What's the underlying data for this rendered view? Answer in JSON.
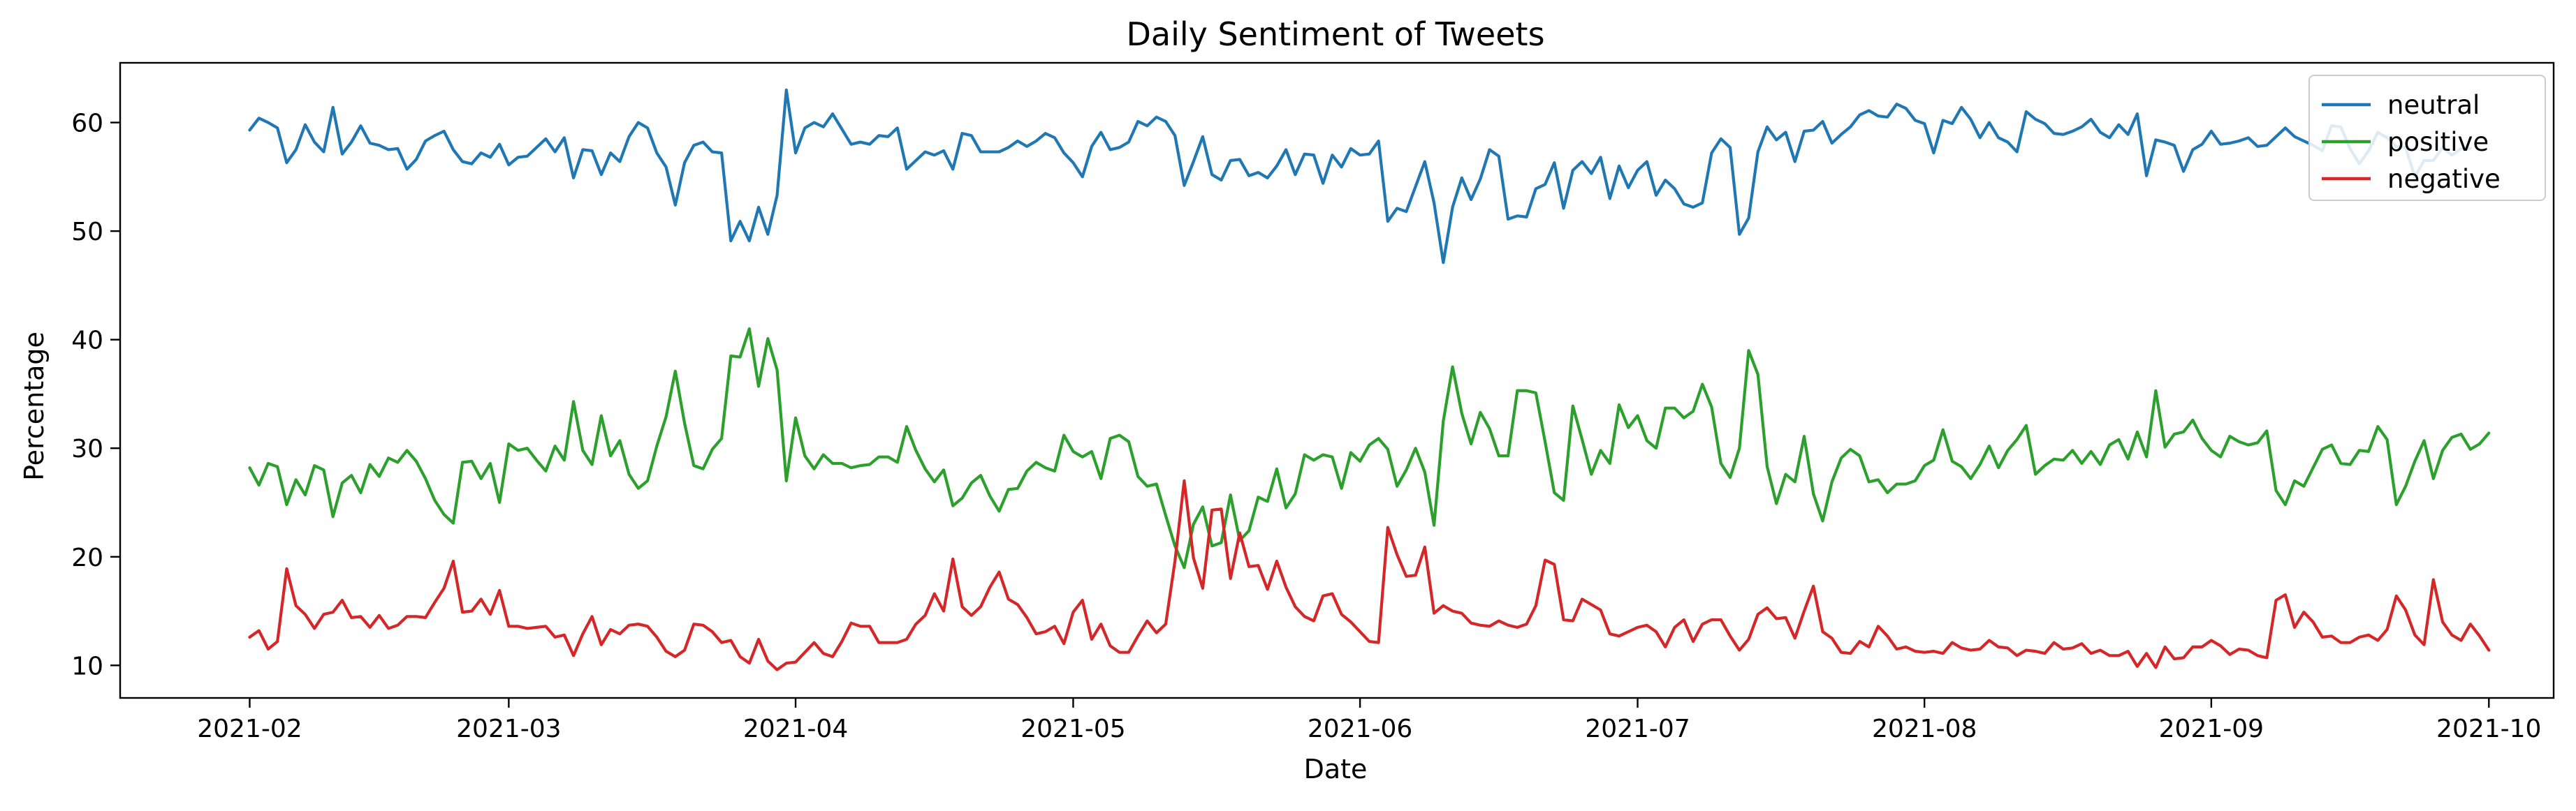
{
  "chart_data": {
    "type": "line",
    "title": "Daily Sentiment of Tweets",
    "xlabel": "Date",
    "ylabel": "Percentage",
    "xlim": [
      "2021-01-18",
      "2021-10-08"
    ],
    "ylim": [
      7,
      65.5
    ],
    "x_ticks": [
      "2021-02-01",
      "2021-03-01",
      "2021-04-01",
      "2021-05-01",
      "2021-06-01",
      "2021-07-01",
      "2021-08-01",
      "2021-09-01",
      "2021-10-01"
    ],
    "x_tick_labels": [
      "2021-02",
      "2021-03",
      "2021-04",
      "2021-05",
      "2021-06",
      "2021-07",
      "2021-08",
      "2021-09",
      "2021-10"
    ],
    "y_ticks": [
      10,
      20,
      30,
      40,
      50,
      60
    ],
    "y_tick_labels": [
      "10",
      "20",
      "30",
      "40",
      "50",
      "60"
    ],
    "grid": false,
    "legend_position": "top-right",
    "x_start": "2021-02-01",
    "series": [
      {
        "name": "neutral",
        "color": "#1f77b4",
        "values": [
          59.3,
          60.4,
          60,
          59.5,
          56.3,
          57.5,
          59.8,
          58.2,
          57.3,
          61.4,
          57.1,
          58.2,
          59.7,
          58.1,
          57.9,
          57.5,
          57.6,
          55.7,
          56.6,
          58.3,
          58.8,
          59.2,
          57.5,
          56.4,
          56.2,
          57.2,
          56.8,
          58,
          56.1,
          56.8,
          56.9,
          57.7,
          58.5,
          57.3,
          58.6,
          54.9,
          57.5,
          57.4,
          55.2,
          57.2,
          56.4,
          58.7,
          60,
          59.5,
          57.2,
          55.9,
          52.4,
          56.3,
          57.9,
          58.2,
          57.3,
          57.2,
          49.1,
          50.9,
          49.1,
          52.2,
          49.7,
          53.3,
          63,
          57.2,
          59.5,
          60,
          59.6,
          60.8,
          59.4,
          58,
          58.2,
          58,
          58.8,
          58.7,
          59.5,
          55.7,
          56.5,
          57.3,
          57,
          57.4,
          55.7,
          59,
          58.8,
          57.3,
          57.3,
          57.3,
          57.7,
          58.3,
          57.8,
          58.3,
          59,
          58.6,
          57.2,
          56.3,
          55,
          57.8,
          59.1,
          57.5,
          57.7,
          58.2,
          60.1,
          59.7,
          60.5,
          60.1,
          58.8,
          54.2,
          56.4,
          58.7,
          55.2,
          54.7,
          56.5,
          56.6,
          55.1,
          55.4,
          54.9,
          56,
          57.5,
          55.2,
          57.1,
          57,
          54.4,
          57,
          55.9,
          57.6,
          57,
          57.1,
          58.3,
          50.9,
          52.1,
          51.8,
          54.1,
          56.4,
          52.6,
          47.1,
          52.2,
          54.9,
          52.9,
          54.8,
          57.5,
          56.9,
          51.1,
          51.4,
          51.3,
          53.9,
          54.3,
          56.3,
          52.1,
          55.6,
          56.4,
          55.3,
          56.8,
          53,
          56,
          54,
          55.6,
          56.4,
          53.3,
          54.7,
          53.9,
          52.5,
          52.2,
          52.6,
          57.2,
          58.5,
          57.7,
          49.7,
          51.2,
          57.3,
          59.6,
          58.4,
          59.1,
          56.4,
          59.2,
          59.3,
          60.1,
          58.1,
          58.9,
          59.6,
          60.7,
          61.1,
          60.6,
          60.5,
          61.7,
          61.3,
          60.2,
          59.9,
          57.2,
          60.2,
          59.9,
          61.4,
          60.3,
          58.6,
          60,
          58.6,
          58.2,
          57.3,
          61,
          60.3,
          59.9,
          59,
          58.9,
          59.2,
          59.6,
          60.3,
          59.1,
          58.6,
          59.8,
          58.9,
          60.8,
          55.1,
          58.4,
          58.2,
          57.9,
          55.5,
          57.5,
          58,
          59.2,
          58,
          58.1,
          58.3,
          58.6,
          57.8,
          57.9,
          58.7,
          59.5,
          58.7,
          58.3,
          57.9,
          57.4,
          59.7,
          59.6,
          57.6,
          56.2,
          57.4,
          59.1,
          58.6,
          57.8,
          57.7,
          55,
          56.5,
          56.5,
          57.7,
          57,
          57.6,
          57.6
        ]
      },
      {
        "name": "positive",
        "color": "#2ca02c",
        "values": [
          28.2,
          26.6,
          28.6,
          28.3,
          24.8,
          27.1,
          25.7,
          28.4,
          28,
          23.7,
          26.8,
          27.5,
          25.9,
          28.5,
          27.4,
          29.1,
          28.7,
          29.8,
          28.8,
          27.2,
          25.2,
          23.9,
          23.1,
          28.7,
          28.8,
          27.2,
          28.6,
          25,
          30.4,
          29.8,
          30,
          28.9,
          27.9,
          30.2,
          28.9,
          34.3,
          29.8,
          28.5,
          33,
          29.3,
          30.7,
          27.6,
          26.3,
          27,
          30.2,
          32.9,
          37.1,
          32.3,
          28.4,
          28.1,
          29.9,
          30.9,
          38.5,
          38.4,
          41,
          35.7,
          40.1,
          37.2,
          27,
          32.8,
          29.3,
          28.1,
          29.4,
          28.6,
          28.6,
          28.2,
          28.4,
          28.5,
          29.2,
          29.2,
          28.7,
          32,
          29.8,
          28.1,
          26.9,
          28,
          24.7,
          25.4,
          26.8,
          27.5,
          25.6,
          24.2,
          26.2,
          26.3,
          27.9,
          28.7,
          28.2,
          27.9,
          31.2,
          29.7,
          29.2,
          29.7,
          27.2,
          30.9,
          31.2,
          30.6,
          27.4,
          26.5,
          26.7,
          23.8,
          21,
          19,
          23,
          24.6,
          21,
          21.3,
          25.7,
          21.5,
          22.4,
          25.5,
          25.1,
          28.1,
          24.5,
          25.8,
          29.4,
          28.9,
          29.4,
          29.2,
          26.3,
          29.6,
          28.8,
          30.3,
          30.9,
          29.9,
          26.5,
          28,
          30,
          27.8,
          22.9,
          32.5,
          37.5,
          33.2,
          30.4,
          33.3,
          31.8,
          29.3,
          29.3,
          35.3,
          35.3,
          35.1,
          30.6,
          25.9,
          25.2,
          33.9,
          30.8,
          27.6,
          29.8,
          28.6,
          34,
          31.9,
          33,
          30.7,
          30,
          33.7,
          33.7,
          32.8,
          33.4,
          35.9,
          33.8,
          28.6,
          27.3,
          30,
          39,
          36.8,
          28.3,
          24.9,
          27.6,
          26.9,
          31.1,
          25.8,
          23.3,
          26.9,
          29.1,
          29.9,
          29.3,
          26.9,
          27.1,
          25.9,
          26.7,
          26.7,
          27,
          28.4,
          28.9,
          31.7,
          28.8,
          28.3,
          27.2,
          28.5,
          30.2,
          28.2,
          29.8,
          30.8,
          32.1,
          27.6,
          28.4,
          29,
          28.9,
          29.8,
          28.6,
          29.7,
          28.5,
          30.3,
          30.8,
          29,
          31.5,
          29.2,
          35.3,
          30.1,
          31.3,
          31.5,
          32.6,
          30.9,
          29.8,
          29.2,
          31.1,
          30.6,
          30.3,
          30.5,
          31.6,
          26.1,
          24.8,
          27,
          26.5,
          28.2,
          29.9,
          30.3,
          28.6,
          28.5,
          29.8,
          29.7,
          32,
          30.8,
          24.8,
          26.5,
          28.8,
          30.7,
          27.2,
          29.8,
          31,
          31.3,
          29.9,
          30.4,
          31.4
        ]
      },
      {
        "name": "negative",
        "color": "#d62728",
        "values": [
          12.6,
          13.2,
          11.5,
          12.2,
          18.9,
          15.5,
          14.7,
          13.4,
          14.7,
          14.9,
          16,
          14.4,
          14.5,
          13.5,
          14.6,
          13.4,
          13.7,
          14.5,
          14.5,
          14.4,
          15.8,
          17.1,
          19.6,
          14.9,
          15,
          16.1,
          14.7,
          16.9,
          13.6,
          13.6,
          13.4,
          13.5,
          13.6,
          12.6,
          12.8,
          10.9,
          12.9,
          14.5,
          11.9,
          13.3,
          12.9,
          13.7,
          13.8,
          13.6,
          12.6,
          11.3,
          10.8,
          11.4,
          13.8,
          13.7,
          13.1,
          12.1,
          12.3,
          10.8,
          10.2,
          12.4,
          10.4,
          9.6,
          10.2,
          10.3,
          11.2,
          12.1,
          11.1,
          10.8,
          12.2,
          13.9,
          13.6,
          13.6,
          12.1,
          12.1,
          12.1,
          12.4,
          13.8,
          14.6,
          16.6,
          15,
          19.8,
          15.4,
          14.6,
          15.4,
          17.2,
          18.6,
          16.1,
          15.6,
          14.4,
          12.9,
          13.1,
          13.6,
          12,
          14.9,
          16,
          12.4,
          13.8,
          11.8,
          11.2,
          11.2,
          12.7,
          14.1,
          13,
          13.8,
          19.6,
          27,
          19.9,
          17.1,
          24.3,
          24.4,
          18,
          22.2,
          19.1,
          19.2,
          17,
          19.6,
          17.2,
          15.4,
          14.5,
          14.1,
          16.4,
          16.6,
          14.7,
          14,
          13.1,
          12.2,
          12.1,
          22.7,
          20.2,
          18.2,
          18.3,
          20.9,
          14.8,
          15.5,
          15,
          14.8,
          13.9,
          13.7,
          13.6,
          14.1,
          13.7,
          13.5,
          13.8,
          15.5,
          19.7,
          19.3,
          14.2,
          14.1,
          16.1,
          15.6,
          15.1,
          12.9,
          12.7,
          13.1,
          13.5,
          13.7,
          13.1,
          11.7,
          13.5,
          14.2,
          12.2,
          13.8,
          14.2,
          14.2,
          12.7,
          11.4,
          12.4,
          14.7,
          15.3,
          14.3,
          14.4,
          12.5,
          15,
          17.3,
          13.1,
          12.5,
          11.2,
          11.1,
          12.2,
          11.7,
          13.6,
          12.7,
          11.5,
          11.7,
          11.3,
          11.2,
          11.3,
          11.1,
          12.1,
          11.6,
          11.4,
          11.5,
          12.3,
          11.7,
          11.6,
          10.9,
          11.4,
          11.3,
          11.1,
          12.1,
          11.5,
          11.6,
          12,
          11.1,
          11.4,
          10.9,
          10.9,
          11.3,
          9.9,
          11.1,
          9.8,
          11.7,
          10.6,
          10.7,
          11.7,
          11.7,
          12.3,
          11.8,
          11,
          11.5,
          11.4,
          10.9,
          10.7,
          16,
          16.5,
          13.5,
          14.9,
          14,
          12.6,
          12.7,
          12.1,
          12.1,
          12.6,
          12.8,
          12.3,
          13.3,
          16.4,
          15.1,
          12.8,
          11.9,
          17.9,
          14,
          12.8,
          12.3,
          13.8,
          12.7,
          11.4
        ]
      }
    ]
  }
}
